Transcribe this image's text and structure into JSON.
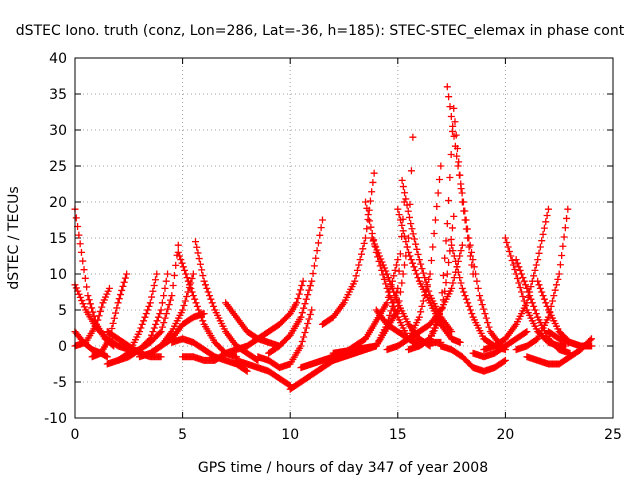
{
  "chart_data": {
    "type": "scatter",
    "title": "dSTEC Iono. truth (conz, Lon=286, Lat=-36, h=185): STEC-STEC_elemax in phase cont",
    "xlabel": "GPS time / hours of day 347 of year 2008",
    "ylabel": "dSTEC  / TECUs",
    "xlim": [
      0,
      25
    ],
    "ylim": [
      -10,
      40
    ],
    "xticks": [
      0,
      5,
      10,
      15,
      20,
      25
    ],
    "yticks": [
      -10,
      -5,
      0,
      5,
      10,
      15,
      20,
      25,
      30,
      35,
      40
    ],
    "grid": true,
    "marker": "plus",
    "color": "#ff0000",
    "series": [
      {
        "x": [
          0.0,
          0.3,
          0.6,
          1.0,
          1.4,
          1.8
        ],
        "y": [
          19,
          13,
          7,
          3,
          1,
          0
        ]
      },
      {
        "x": [
          0.0,
          0.5,
          1.0,
          1.5,
          2.0,
          2.5
        ],
        "y": [
          8.5,
          5,
          2.5,
          1,
          0,
          -0.5
        ]
      },
      {
        "x": [
          0.0,
          0.4,
          0.8,
          1.2,
          1.5
        ],
        "y": [
          2,
          0.5,
          -0.5,
          -1,
          -1.5
        ]
      },
      {
        "x": [
          0.0,
          0.5,
          1.0,
          1.3,
          1.6
        ],
        "y": [
          0,
          0.5,
          3,
          6,
          8
        ]
      },
      {
        "x": [
          0.8,
          1.2,
          1.6,
          2.0,
          2.4
        ],
        "y": [
          -1.5,
          -1,
          1,
          6,
          10
        ]
      },
      {
        "x": [
          1.5,
          2.0,
          2.5,
          3.0,
          3.5,
          3.8
        ],
        "y": [
          -2.5,
          -2,
          -1,
          2,
          6,
          10
        ]
      },
      {
        "x": [
          2.0,
          2.5,
          3.0,
          3.5,
          4.0,
          4.3
        ],
        "y": [
          -2,
          -1.5,
          -0.5,
          1,
          5,
          10
        ]
      },
      {
        "x": [
          1.5,
          2.0,
          2.5,
          3.0,
          3.5,
          4.0
        ],
        "y": [
          2,
          1,
          0,
          -1,
          -1.5,
          -1.5
        ]
      },
      {
        "x": [
          2.5,
          3.0,
          3.5,
          4.0,
          4.5,
          4.8
        ],
        "y": [
          -1,
          -0.5,
          0.5,
          2,
          7,
          14
        ]
      },
      {
        "x": [
          3.0,
          3.5,
          4.0,
          4.5,
          5.0,
          5.5
        ],
        "y": [
          -1.5,
          -1,
          0,
          2,
          5,
          10
        ]
      },
      {
        "x": [
          3.5,
          4.0,
          4.5,
          5.0,
          5.5,
          6.0
        ],
        "y": [
          -1,
          0,
          1,
          3,
          4,
          4.5
        ]
      },
      {
        "x": [
          4.8,
          5.5,
          6.0,
          6.5,
          7.0,
          7.5
        ],
        "y": [
          13,
          7,
          3,
          0.5,
          -1,
          -1.5
        ]
      },
      {
        "x": [
          5.6,
          6.0,
          6.5,
          7.0,
          7.5,
          8.0,
          8.5
        ],
        "y": [
          14.5,
          9,
          5,
          2,
          0,
          -1,
          -2
        ]
      },
      {
        "x": [
          4.5,
          5.0,
          5.5,
          6.0,
          6.5,
          7.0,
          7.5,
          8.0
        ],
        "y": [
          0.5,
          1,
          0.5,
          -0.5,
          -1.5,
          -2,
          -2.5,
          -3.5
        ]
      },
      {
        "x": [
          5.0,
          5.5,
          6.0,
          6.5,
          7.0,
          7.5,
          8.0
        ],
        "y": [
          -1.5,
          -1.5,
          -2,
          -2,
          -1,
          -0.5,
          0
        ]
      },
      {
        "x": [
          7.0,
          7.5,
          8.0,
          8.5,
          9.0,
          9.5
        ],
        "y": [
          6,
          4,
          2,
          1,
          0.5,
          0
        ]
      },
      {
        "x": [
          7.5,
          8.0,
          8.5,
          9.0,
          9.5,
          10.0
        ],
        "y": [
          -2,
          -2.5,
          -3,
          -3.5,
          -4.5,
          -5.5
        ]
      },
      {
        "x": [
          8.0,
          8.5,
          9.0,
          9.5,
          10.0,
          10.3,
          10.6
        ],
        "y": [
          0,
          1,
          2,
          3,
          4.5,
          6,
          9
        ]
      },
      {
        "x": [
          9.0,
          9.5,
          10.0,
          10.5,
          11.0,
          11.5
        ],
        "y": [
          -1,
          0,
          1.5,
          4,
          9,
          17.5
        ]
      },
      {
        "x": [
          8.5,
          9.0,
          9.5,
          10.0,
          10.5,
          11.0
        ],
        "y": [
          -1.5,
          -2,
          -3,
          -2.5,
          0,
          5
        ]
      },
      {
        "x": [
          10.0,
          10.5,
          11.0,
          11.5,
          12.0
        ],
        "y": [
          -6,
          -5,
          -4,
          -3,
          -2
        ]
      },
      {
        "x": [
          11.5,
          12.0,
          12.5,
          13.0,
          13.5,
          13.9
        ],
        "y": [
          3,
          4,
          6,
          9,
          15,
          24
        ]
      },
      {
        "x": [
          10.5,
          11.5,
          12.5,
          13.5,
          14.5,
          15.0
        ],
        "y": [
          -3,
          -2,
          -1,
          1,
          6,
          12
        ]
      },
      {
        "x": [
          12.0,
          13.0,
          14.0,
          15.0,
          15.5,
          15.7
        ],
        "y": [
          -1,
          -0.5,
          0,
          5,
          15,
          29
        ]
      },
      {
        "x": [
          12.0,
          13.0,
          14.0,
          14.5,
          15.0,
          15.3
        ],
        "y": [
          -2,
          -1,
          0,
          3,
          8,
          20
        ]
      },
      {
        "x": [
          13.5,
          14.0,
          14.5,
          15.0,
          15.5,
          16.0
        ],
        "y": [
          20,
          13,
          8,
          4,
          1,
          0
        ]
      },
      {
        "x": [
          13.8,
          14.5,
          15.0,
          15.5,
          16.0,
          16.5
        ],
        "y": [
          15,
          10,
          6,
          3,
          1,
          0
        ]
      },
      {
        "x": [
          14.0,
          14.5,
          15.0,
          15.5,
          16.0,
          16.5,
          17.0
        ],
        "y": [
          5,
          3,
          2,
          1,
          0.5,
          0.5,
          0.5
        ]
      },
      {
        "x": [
          15.0,
          15.5,
          16.0,
          16.5,
          17.0,
          17.5,
          17.9
        ],
        "y": [
          19,
          13,
          9,
          6,
          3,
          1,
          0.5
        ]
      },
      {
        "x": [
          15.2,
          15.6,
          16.0,
          16.5,
          17.0,
          17.5
        ],
        "y": [
          23,
          17,
          12,
          7,
          4,
          2
        ]
      },
      {
        "x": [
          14.5,
          15.0,
          15.5,
          16.0,
          16.5,
          17.0
        ],
        "y": [
          -0.5,
          0,
          1,
          4,
          10,
          25
        ]
      },
      {
        "x": [
          15.5,
          16.0,
          16.5,
          17.0,
          17.3,
          17.6
        ],
        "y": [
          -0.5,
          0,
          1,
          4,
          10,
          18
        ]
      },
      {
        "x": [
          15.5,
          16.0,
          16.5,
          17.0,
          17.5,
          18.0
        ],
        "y": [
          1,
          2,
          3,
          5,
          8,
          14
        ]
      },
      {
        "x": [
          16.0,
          16.5,
          17.0,
          17.3,
          17.6,
          18.0,
          18.5
        ],
        "y": [
          0,
          1,
          5,
          17,
          33,
          20,
          10
        ]
      },
      {
        "x": [
          17.3,
          17.8,
          18.3,
          18.8,
          19.3,
          19.8
        ],
        "y": [
          36,
          25,
          15,
          7,
          2,
          0
        ]
      },
      {
        "x": [
          17.5,
          18.0,
          18.5,
          19.0,
          19.5,
          20.0
        ],
        "y": [
          14,
          8,
          4,
          1,
          0,
          -0.5
        ]
      },
      {
        "x": [
          17.0,
          17.5,
          18.0,
          18.5,
          19.0,
          19.5,
          20.0
        ],
        "y": [
          0,
          -0.5,
          -1.5,
          -3,
          -3.5,
          -3,
          -2
        ]
      },
      {
        "x": [
          18.5,
          19.0,
          19.5,
          20.0,
          20.5,
          21.0
        ],
        "y": [
          -1,
          -1.5,
          -1,
          0,
          1,
          2
        ]
      },
      {
        "x": [
          19.0,
          19.5,
          20.0,
          20.5,
          21.0,
          21.5,
          22.0
        ],
        "y": [
          -0.5,
          0,
          1,
          3,
          6,
          12,
          19
        ]
      },
      {
        "x": [
          20.0,
          20.5,
          21.0,
          21.5,
          22.0,
          22.5,
          22.8
        ],
        "y": [
          15,
          10,
          5,
          2,
          0.5,
          0,
          0
        ]
      },
      {
        "x": [
          20.5,
          21.0,
          21.5,
          22.0,
          22.5,
          23.0
        ],
        "y": [
          12,
          8,
          4,
          1,
          -0.5,
          -1
        ]
      },
      {
        "x": [
          20.5,
          21.0,
          21.5,
          22.0,
          22.5,
          22.9
        ],
        "y": [
          -0.5,
          0,
          1,
          4,
          10,
          19
        ]
      },
      {
        "x": [
          21.5,
          22.0,
          22.5,
          23.0,
          23.5,
          24.0
        ],
        "y": [
          9,
          5,
          2,
          0.5,
          0,
          0
        ]
      },
      {
        "x": [
          21.0,
          21.5,
          22.0,
          22.5,
          23.0,
          23.5,
          24.0
        ],
        "y": [
          -1.5,
          -2,
          -2.5,
          -2.5,
          -1.5,
          -0.5,
          1
        ]
      },
      {
        "x": [
          22.0,
          22.5,
          23.0,
          23.5,
          24.0
        ],
        "y": [
          2,
          1,
          0.5,
          0,
          0
        ]
      }
    ]
  }
}
